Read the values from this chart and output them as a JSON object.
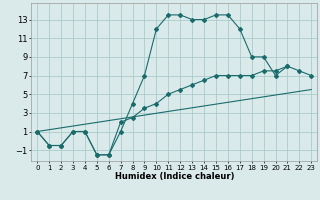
{
  "title": "",
  "xlabel": "Humidex (Indice chaleur)",
  "background_color": "#daeaea",
  "grid_color": "#aacccc",
  "line_color": "#1a6b6b",
  "xlim": [
    -0.5,
    23.5
  ],
  "ylim": [
    -2.2,
    14.8
  ],
  "xticks": [
    0,
    1,
    2,
    3,
    4,
    5,
    6,
    7,
    8,
    9,
    10,
    11,
    12,
    13,
    14,
    15,
    16,
    17,
    18,
    19,
    20,
    21,
    22,
    23
  ],
  "yticks": [
    -1,
    1,
    3,
    5,
    7,
    9,
    11,
    13
  ],
  "series1_x": [
    0,
    1,
    2,
    3,
    4,
    5,
    6,
    7,
    8,
    9,
    10,
    11,
    12,
    13,
    14,
    15,
    16,
    17,
    18,
    19,
    20,
    21
  ],
  "series1_y": [
    1,
    -0.5,
    -0.5,
    1,
    1,
    -1.5,
    -1.5,
    1,
    4,
    7,
    12,
    13.5,
    13.5,
    13,
    13,
    13.5,
    13.5,
    12,
    9,
    9,
    7,
    8
  ],
  "series2_x": [
    0,
    1,
    2,
    3,
    4,
    5,
    6,
    7,
    8,
    9,
    10,
    11,
    12,
    13,
    14,
    15,
    16,
    17,
    18,
    19,
    20,
    21,
    22,
    23
  ],
  "series2_y": [
    1,
    -0.5,
    -0.5,
    1,
    1,
    -1.5,
    -1.5,
    2,
    2.5,
    3.5,
    4,
    5,
    5.5,
    6,
    6.5,
    7,
    7,
    7,
    7,
    7.5,
    7.5,
    8,
    7.5,
    7
  ],
  "series3_x": [
    0,
    23
  ],
  "series3_y": [
    1,
    5.5
  ]
}
